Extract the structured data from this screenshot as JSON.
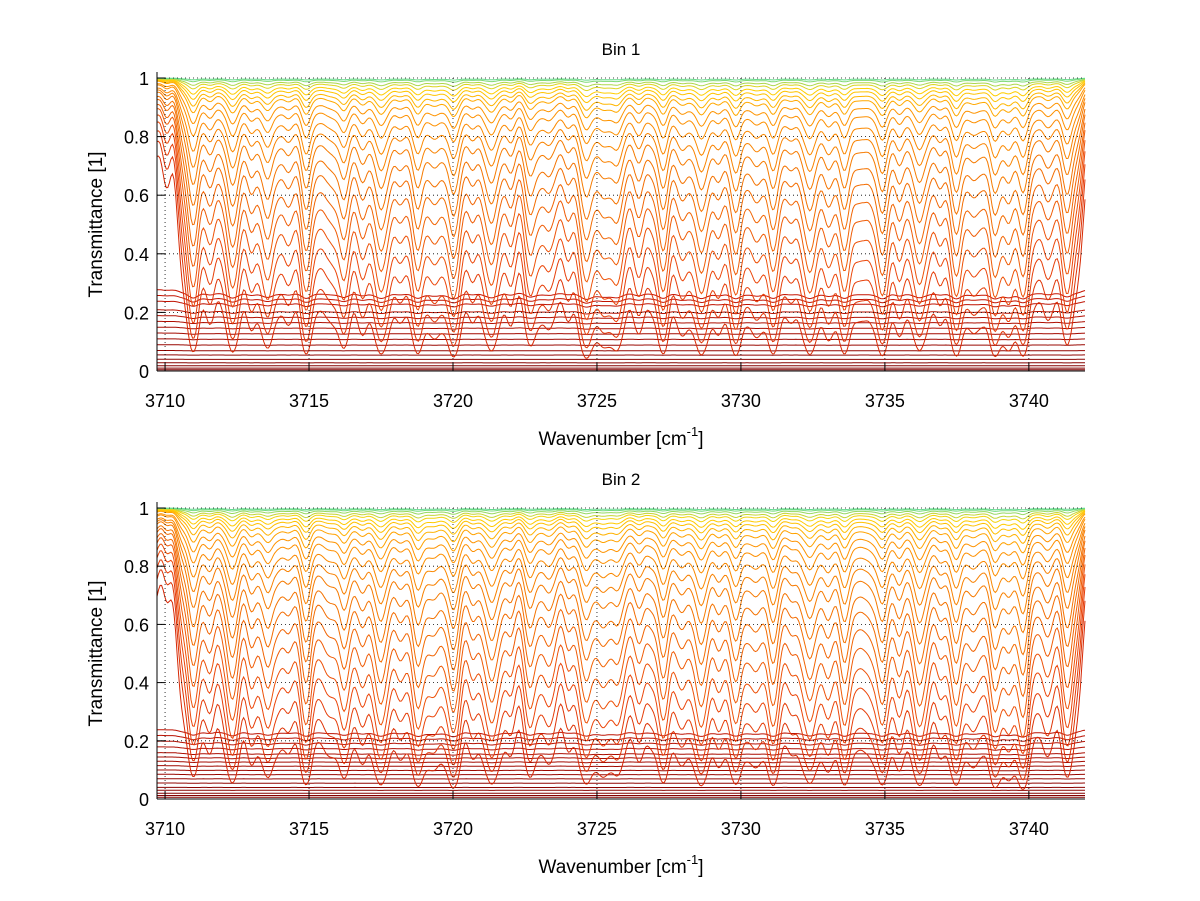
{
  "chart_data": [
    {
      "type": "line",
      "title": "Bin 1",
      "xlabel": "Wavenumber [cm",
      "xlabel_sup": "-1",
      "xlabel_end": "]",
      "ylabel": "Transmittance [1]",
      "xlim": [
        3709.72,
        3741.95
      ],
      "ylim": [
        0,
        1
      ],
      "xticks": [
        "3710",
        "3715",
        "3720",
        "3725",
        "3730",
        "3735",
        "3740"
      ],
      "yticks": [
        "0",
        "0.2",
        "0.4",
        "0.6",
        "0.8",
        "1"
      ],
      "grid": true,
      "line_positions": [
        3710.97,
        3711.6,
        3712.32,
        3713.0,
        3713.6,
        3714.25,
        3714.9,
        3715.6,
        3716.2,
        3716.9,
        3717.5,
        3718.1,
        3718.8,
        3719.4,
        3720.0,
        3720.7,
        3721.35,
        3722.0,
        3722.7,
        3723.3,
        3724.0,
        3724.65,
        3725.2,
        3725.7,
        3726.5,
        3727.3,
        3728.0,
        3728.6,
        3729.2,
        3729.85,
        3730.5,
        3731.1,
        3731.8,
        3732.4,
        3733.0,
        3733.6,
        3734.3,
        3734.9,
        3735.5,
        3736.2,
        3736.9,
        3737.5,
        3738.1,
        3738.8,
        3739.3,
        3739.8,
        3740.6,
        3741.35
      ],
      "line_strengths": [
        1.1,
        0.4,
        1.0,
        0.5,
        0.9,
        0.4,
        1.0,
        0.4,
        0.9,
        0.5,
        1.0,
        0.4,
        1.0,
        0.5,
        1.1,
        0.4,
        1.0,
        0.4,
        0.8,
        0.6,
        0.4,
        1.1,
        0.6,
        0.9,
        0.6,
        1.0,
        0.5,
        1.0,
        0.5,
        1.0,
        0.5,
        1.0,
        0.4,
        1.0,
        0.5,
        1.0,
        0.4,
        1.0,
        0.5,
        1.0,
        0.4,
        1.0,
        0.5,
        1.0,
        0.6,
        1.0,
        0.5,
        1.0
      ],
      "series_base": [
        1,
        1,
        1,
        1,
        1,
        1,
        1,
        1,
        0.995,
        0.995,
        0.99,
        0.99,
        0.99,
        0.985,
        0.985,
        0.98,
        0.98,
        0.975,
        0.97,
        0.96,
        0.95,
        0.93,
        0.28,
        0.26,
        0.24,
        0.21,
        0.19,
        0.17,
        0.15,
        0.13,
        0.11,
        0.09,
        0.07,
        0.055,
        0.04,
        0.028,
        0.018,
        0.01,
        0.004
      ],
      "series_line_scale": [
        0.005,
        0.01,
        0.02,
        0.03,
        0.045,
        0.06,
        0.08,
        0.1,
        0.13,
        0.17,
        0.22,
        0.28,
        0.35,
        0.44,
        0.54,
        0.66,
        0.8,
        0.97,
        1.17,
        1.4,
        1.7,
        2.1,
        0.35,
        0.3,
        0.25,
        0.2,
        0.18,
        0.15,
        0.13,
        0.11,
        0.09,
        0.08,
        0.06,
        0.05,
        0.04,
        0.03,
        0.02,
        0.01,
        0.005
      ]
    },
    {
      "type": "line",
      "title": "Bin 2",
      "xlabel": "Wavenumber [cm",
      "xlabel_sup": "-1",
      "xlabel_end": "]",
      "ylabel": "Transmittance [1]",
      "xlim": [
        3709.72,
        3741.95
      ],
      "ylim": [
        0,
        1
      ],
      "xticks": [
        "3710",
        "3715",
        "3720",
        "3725",
        "3730",
        "3735",
        "3740"
      ],
      "yticks": [
        "0",
        "0.2",
        "0.4",
        "0.6",
        "0.8",
        "1"
      ],
      "grid": true,
      "line_positions": [
        3710.97,
        3711.6,
        3712.32,
        3713.0,
        3713.6,
        3714.25,
        3714.9,
        3715.6,
        3716.2,
        3716.9,
        3717.5,
        3718.1,
        3718.8,
        3719.4,
        3720.0,
        3720.7,
        3721.35,
        3722.0,
        3722.7,
        3723.3,
        3724.0,
        3724.65,
        3725.2,
        3725.7,
        3726.5,
        3727.3,
        3728.0,
        3728.6,
        3729.2,
        3729.85,
        3730.5,
        3731.1,
        3731.8,
        3732.4,
        3733.0,
        3733.6,
        3734.3,
        3734.9,
        3735.5,
        3736.2,
        3736.9,
        3737.5,
        3738.1,
        3738.8,
        3739.3,
        3739.8,
        3740.6,
        3741.35
      ],
      "line_strengths": [
        1.0,
        0.4,
        1.0,
        0.5,
        0.9,
        0.4,
        1.0,
        0.4,
        0.9,
        0.5,
        1.0,
        0.4,
        1.1,
        0.5,
        1.1,
        0.4,
        1.1,
        0.4,
        0.8,
        0.6,
        0.4,
        1.0,
        0.6,
        0.8,
        0.6,
        1.0,
        0.5,
        1.0,
        0.5,
        1.0,
        0.5,
        1.0,
        0.4,
        1.0,
        0.5,
        1.0,
        0.4,
        1.0,
        0.5,
        1.1,
        0.4,
        1.0,
        0.5,
        1.0,
        0.6,
        1.1,
        0.5,
        1.0
      ],
      "series_base": [
        1,
        1,
        1,
        1,
        1,
        1,
        1,
        1,
        1,
        0.995,
        0.995,
        0.99,
        0.99,
        0.99,
        0.985,
        0.985,
        0.98,
        0.98,
        0.975,
        0.97,
        0.96,
        0.95,
        0.93,
        0.24,
        0.22,
        0.2,
        0.18,
        0.16,
        0.145,
        0.13,
        0.115,
        0.1,
        0.085,
        0.07,
        0.055,
        0.04,
        0.03,
        0.02,
        0.012,
        0.006
      ],
      "series_line_scale": [
        0.004,
        0.008,
        0.015,
        0.025,
        0.035,
        0.05,
        0.065,
        0.085,
        0.11,
        0.14,
        0.18,
        0.23,
        0.29,
        0.36,
        0.45,
        0.55,
        0.67,
        0.82,
        1.0,
        1.2,
        1.45,
        1.75,
        2.2,
        0.3,
        0.26,
        0.22,
        0.19,
        0.16,
        0.14,
        0.12,
        0.1,
        0.09,
        0.07,
        0.06,
        0.05,
        0.04,
        0.03,
        0.02,
        0.01,
        0.005
      ]
    }
  ]
}
